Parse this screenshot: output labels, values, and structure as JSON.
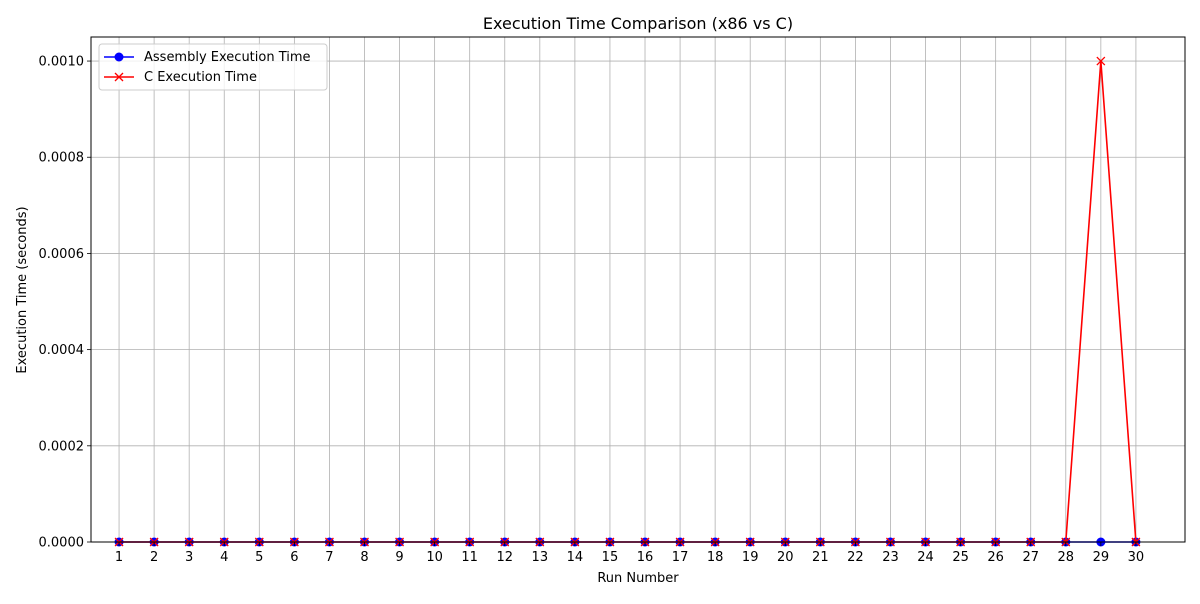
{
  "chart_data": {
    "type": "line",
    "title": "Execution Time Comparison (x86 vs C)",
    "xlabel": "Run Number",
    "ylabel": "Execution Time (seconds)",
    "x": [
      1,
      2,
      3,
      4,
      5,
      6,
      7,
      8,
      9,
      10,
      11,
      12,
      13,
      14,
      15,
      16,
      17,
      18,
      19,
      20,
      21,
      22,
      23,
      24,
      25,
      26,
      27,
      28,
      29,
      30
    ],
    "xlim": [
      0.2,
      31.4
    ],
    "ylim": [
      0,
      0.00105
    ],
    "yticks": [
      0,
      0.0002,
      0.0004,
      0.0006,
      0.0008,
      0.001
    ],
    "ytick_labels": [
      "0.0000",
      "0.0002",
      "0.0004",
      "0.0006",
      "0.0008",
      "0.0010"
    ],
    "grid": true,
    "legend_position": "top-left",
    "series": [
      {
        "name": "Assembly Execution Time",
        "color": "#0000ff",
        "marker": "circle",
        "values": [
          0,
          0,
          0,
          0,
          0,
          0,
          0,
          0,
          0,
          0,
          0,
          0,
          0,
          0,
          0,
          0,
          0,
          0,
          0,
          0,
          0,
          0,
          0,
          0,
          0,
          0,
          0,
          0,
          0,
          0
        ]
      },
      {
        "name": "C Execution Time",
        "color": "#ff0000",
        "marker": "x",
        "values": [
          0,
          0,
          0,
          0,
          0,
          0,
          0,
          0,
          0,
          0,
          0,
          0,
          0,
          0,
          0,
          0,
          0,
          0,
          0,
          0,
          0,
          0,
          0,
          0,
          0,
          0,
          0,
          0,
          0.001,
          0
        ]
      }
    ]
  }
}
